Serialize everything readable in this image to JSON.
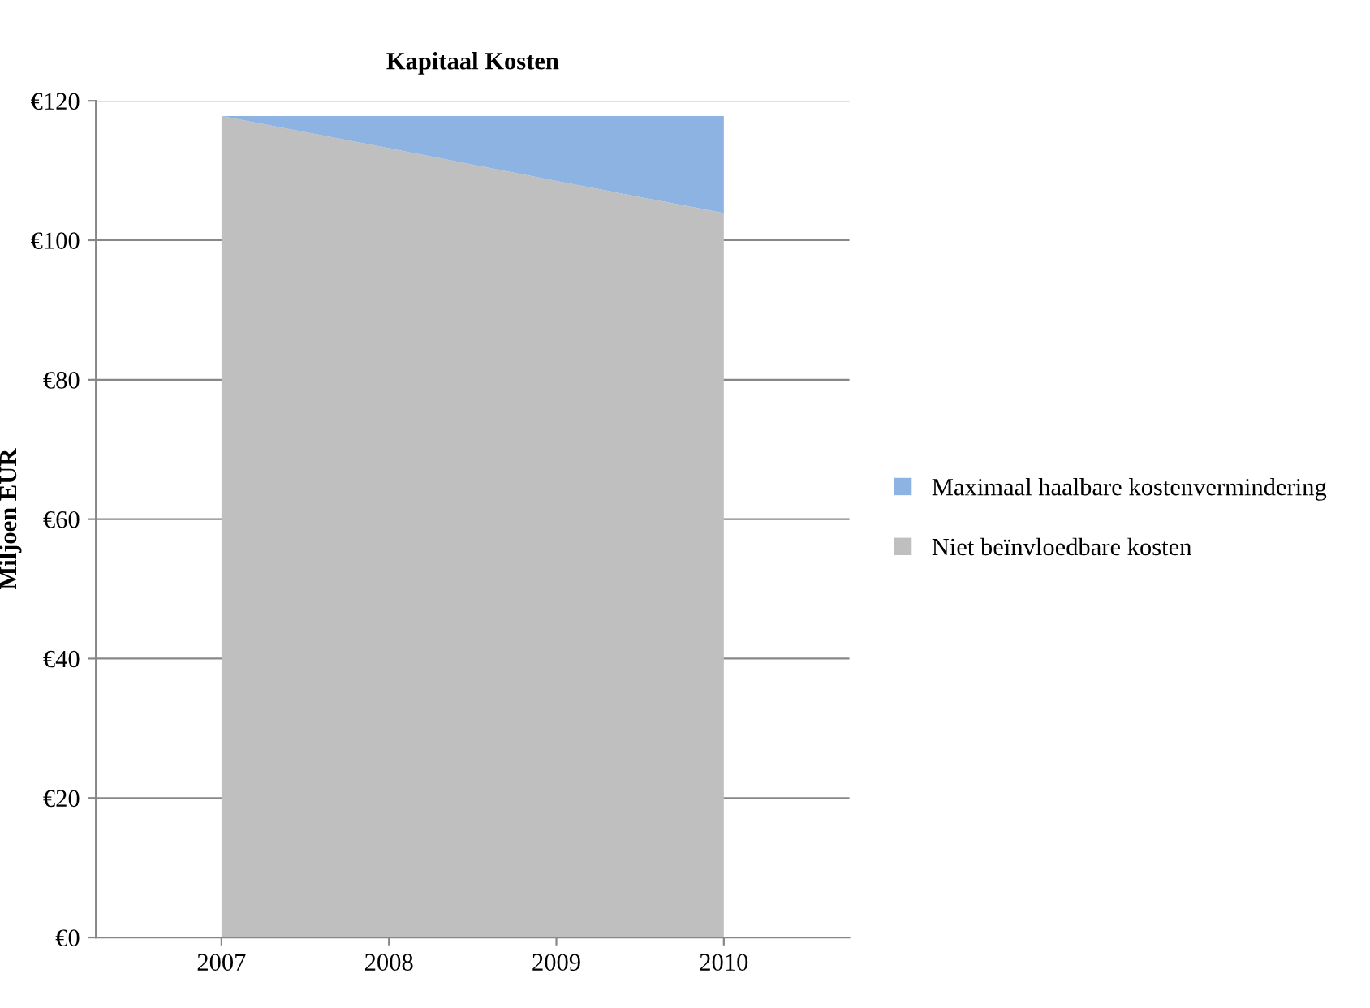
{
  "chart_data": {
    "type": "area",
    "stacked": true,
    "title": "Kapitaal Kosten",
    "ylabel": "Miljoen EUR",
    "categories": [
      "2007",
      "2008",
      "2009",
      "2010"
    ],
    "series": [
      {
        "name": "Niet beïnvloedbare kosten",
        "color": "#bfbfbf",
        "values": [
          117.8,
          113.2,
          108.5,
          103.9
        ]
      },
      {
        "name": "Maximaal haalbare kostenvermindering",
        "color": "#8db3e2",
        "values": [
          0,
          4.6,
          9.3,
          13.9
        ]
      }
    ],
    "ylim": [
      0,
      120
    ],
    "yticks": [
      {
        "value": 0,
        "label": "€0"
      },
      {
        "value": 20,
        "label": "€20"
      },
      {
        "value": 40,
        "label": "€40"
      },
      {
        "value": 60,
        "label": "€60"
      },
      {
        "value": 80,
        "label": "€80"
      },
      {
        "value": 100,
        "label": "€100"
      },
      {
        "value": 120,
        "label": "€120"
      }
    ],
    "grid": "y",
    "legend": "right"
  }
}
